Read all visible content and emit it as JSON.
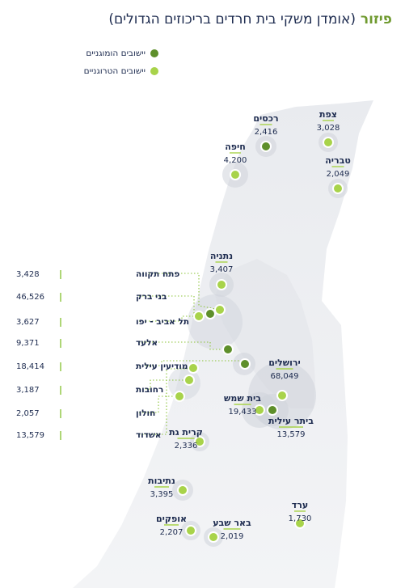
{
  "title": {
    "accent": "פיזור",
    "rest": "(אומדן משקי בית חרדים בריכוזים הגדולים)"
  },
  "legend": [
    {
      "label": "יישובים הומוגניים",
      "color": "#5e8f2b"
    },
    {
      "label": "יישובים הטרוגניים",
      "color": "#a8d34a"
    }
  ],
  "colors": {
    "homogeneous": "#5e8f2b",
    "heterogeneous": "#a8d34a",
    "land": "#eceef1",
    "halo": "#cfd3db",
    "text": "#1d2b4f"
  },
  "settlements": [
    {
      "name": "צפת",
      "value": "3,028",
      "type": "heterogeneous"
    },
    {
      "name": "רכסים",
      "value": "2,416",
      "type": "homogeneous"
    },
    {
      "name": "חיפה",
      "value": "4,200",
      "type": "heterogeneous"
    },
    {
      "name": "טבריה",
      "value": "2,049",
      "type": "heterogeneous"
    },
    {
      "name": "נתניה",
      "value": "3,407",
      "type": "heterogeneous"
    },
    {
      "name": "ירושלים",
      "value": "68,049",
      "type": "heterogeneous"
    },
    {
      "name": "בית שמש",
      "value": "19,433",
      "type": "heterogeneous"
    },
    {
      "name": "ביתר עילית",
      "value": "13,579",
      "type": "homogeneous"
    },
    {
      "name": "קרית גת",
      "value": "2,336",
      "type": "heterogeneous"
    },
    {
      "name": "נתיבות",
      "value": "3,395",
      "type": "heterogeneous"
    },
    {
      "name": "ערד",
      "value": "1,730",
      "type": "heterogeneous"
    },
    {
      "name": "אופקים",
      "value": "2,207",
      "type": "heterogeneous"
    },
    {
      "name": "באר שבע",
      "value": "2,019",
      "type": "heterogeneous"
    }
  ],
  "callouts": [
    {
      "name": "פתח תקווה",
      "value": "3,428",
      "type": "heterogeneous"
    },
    {
      "name": "בני ברק",
      "value": "46,526",
      "type": "homogeneous"
    },
    {
      "name": "תל אביב - יפו",
      "value": "3,627",
      "type": "heterogeneous"
    },
    {
      "name": "אלעד",
      "value": "9,371",
      "type": "homogeneous"
    },
    {
      "name": "מודיעין עילית",
      "value": "18,414",
      "type": "homogeneous"
    },
    {
      "name": "רחובות",
      "value": "3,187",
      "type": "heterogeneous"
    },
    {
      "name": "חולון",
      "value": "2,057",
      "type": "heterogeneous"
    },
    {
      "name": "אשדוד",
      "value": "13,579",
      "type": "heterogeneous"
    }
  ]
}
